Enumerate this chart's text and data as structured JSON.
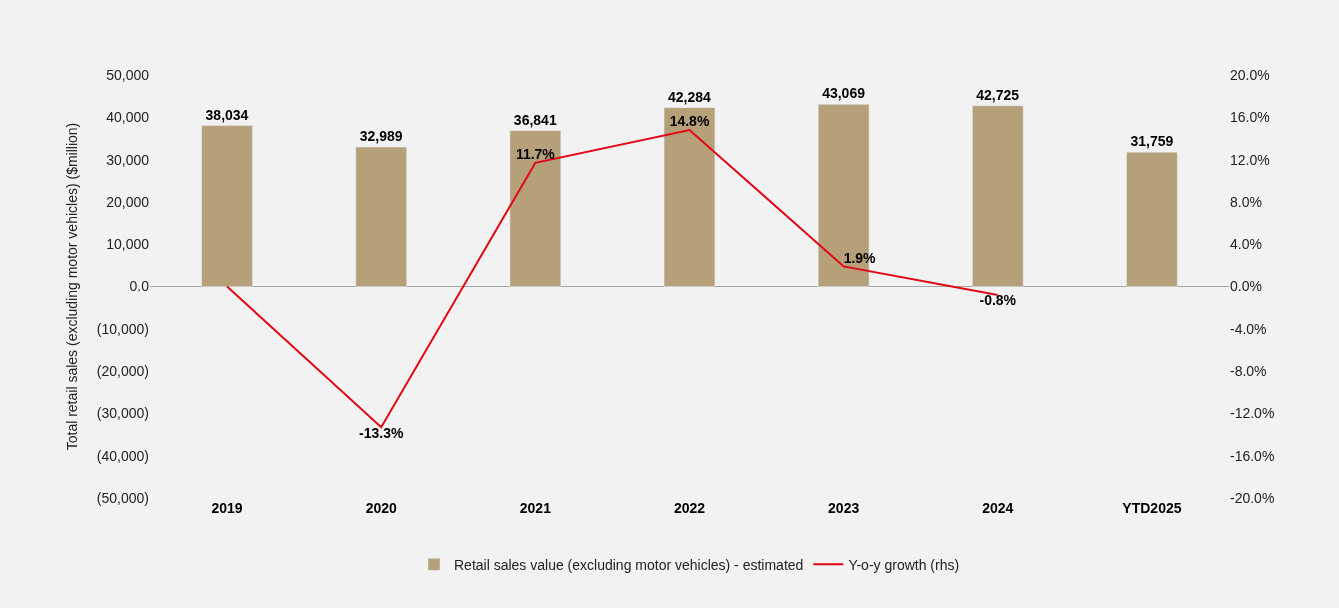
{
  "chart_data": {
    "type": "bar",
    "ylabel": "Total retail sales (excluding motor vehicles) ($million)",
    "categories": [
      "2019",
      "2020",
      "2021",
      "2022",
      "2023",
      "2024",
      "YTD2025"
    ],
    "series": [
      {
        "name": "Retail sales value (excluding motor vehicles) - estimated",
        "color": "#b5a07a",
        "values": [
          38034,
          32989,
          36841,
          42284,
          43069,
          42725,
          31759
        ],
        "value_labels": [
          "38,034",
          "32,989",
          "36,841",
          "42,284",
          "43,069",
          "42,725",
          "31,759"
        ]
      },
      {
        "name": "Y-o-y growth (rhs)",
        "type": "line",
        "axis": "y2",
        "color": "#e30613",
        "values": [
          0.0,
          -13.3,
          11.7,
          14.8,
          1.9,
          -0.8,
          null
        ],
        "value_labels": [
          null,
          "-13.3%",
          "11.7%",
          "14.8%",
          "1.9%",
          "-0.8%",
          null
        ]
      }
    ],
    "ylim": [
      -50000,
      50000
    ],
    "yticks": [
      {
        "value": -50000,
        "label": "(50,000)"
      },
      {
        "value": -40000,
        "label": "(40,000)"
      },
      {
        "value": -30000,
        "label": "(30,000)"
      },
      {
        "value": -20000,
        "label": "(20,000)"
      },
      {
        "value": -10000,
        "label": "(10,000)"
      },
      {
        "value": 0,
        "label": "0.0"
      },
      {
        "value": 10000,
        "label": "10,000"
      },
      {
        "value": 20000,
        "label": "20,000"
      },
      {
        "value": 30000,
        "label": "30,000"
      },
      {
        "value": 40000,
        "label": "40,000"
      },
      {
        "value": 50000,
        "label": "50,000"
      }
    ],
    "y2lim": [
      -20,
      20
    ],
    "y2ticks": [
      {
        "value": -20,
        "label": "-20.0%"
      },
      {
        "value": -16,
        "label": "-16.0%"
      },
      {
        "value": -12,
        "label": "-12.0%"
      },
      {
        "value": -8,
        "label": "-8.0%"
      },
      {
        "value": -4,
        "label": "-4.0%"
      },
      {
        "value": 0,
        "label": "0.0%"
      },
      {
        "value": 4,
        "label": "4.0%"
      },
      {
        "value": 8,
        "label": "8.0%"
      },
      {
        "value": 12,
        "label": "12.0%"
      },
      {
        "value": 16,
        "label": "16.0%"
      },
      {
        "value": 20,
        "label": "20.0%"
      }
    ],
    "ref_lines": [
      {
        "axis": "y",
        "value": 0,
        "color": "#a6a6a6"
      }
    ],
    "grid": false,
    "legend": "bottom",
    "marker": "none",
    "line_style": "solid"
  }
}
